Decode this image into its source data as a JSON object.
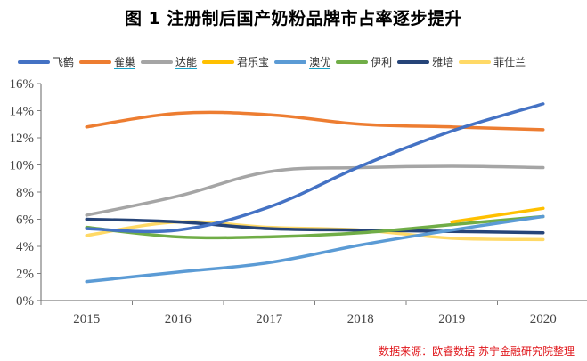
{
  "chart_data": {
    "type": "line",
    "title": "图 1  注册制后国产奶粉品牌市占率逐步提升",
    "xlabel": "",
    "ylabel": "",
    "categories": [
      "2015",
      "2016",
      "2017",
      "2018",
      "2019",
      "2020"
    ],
    "ylim": [
      0,
      16
    ],
    "yticks": [
      "0%",
      "2%",
      "4%",
      "6%",
      "8%",
      "10%",
      "12%",
      "14%",
      "16%"
    ],
    "ytick_values": [
      0,
      2,
      4,
      6,
      8,
      10,
      12,
      14,
      16
    ],
    "grid": false,
    "legend_position": "top",
    "series": [
      {
        "name": "飞鹤",
        "color": "#4472c4",
        "underline": false,
        "values": [
          5.3,
          5.2,
          6.9,
          9.9,
          12.5,
          14.5
        ]
      },
      {
        "name": "雀巢",
        "color": "#ed7d31",
        "underline": true,
        "values": [
          12.8,
          13.8,
          13.7,
          13.0,
          12.8,
          12.6
        ]
      },
      {
        "name": "达能",
        "color": "#a5a5a5",
        "underline": true,
        "values": [
          6.3,
          7.7,
          9.5,
          9.8,
          9.9,
          9.8
        ]
      },
      {
        "name": "君乐宝",
        "color": "#ffc000",
        "underline": false,
        "values": [
          null,
          null,
          null,
          null,
          5.8,
          6.8
        ]
      },
      {
        "name": "澳优",
        "color": "#5b9bd5",
        "underline": true,
        "values": [
          1.4,
          2.1,
          2.8,
          4.1,
          5.2,
          6.2
        ]
      },
      {
        "name": "伊利",
        "color": "#70ad47",
        "underline": false,
        "values": [
          5.4,
          4.7,
          4.7,
          5.0,
          5.6,
          6.2
        ]
      },
      {
        "name": "雅培",
        "color": "#264478",
        "underline": false,
        "values": [
          6.0,
          5.8,
          5.3,
          5.2,
          5.1,
          5.0
        ]
      },
      {
        "name": "菲仕兰",
        "color": "#ffd966",
        "underline": false,
        "values": [
          4.8,
          5.8,
          5.4,
          5.2,
          4.6,
          4.5
        ]
      }
    ]
  },
  "footer": {
    "source": "数据来源：欧睿数据 苏宁金融研究院整理"
  }
}
